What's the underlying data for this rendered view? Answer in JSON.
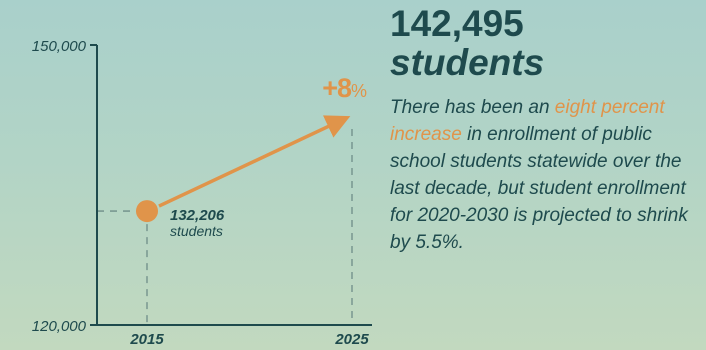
{
  "headline": {
    "number": "142,495",
    "unit": "students"
  },
  "body": {
    "text_before": "There has been an ",
    "accent": "eight percent increase",
    "text_after": " in enrollment of public school students statewide over the last decade, but student enrollment for 2020-2030 is projected to shrink by 5.5%."
  },
  "colors": {
    "accent": "#e0944a",
    "text": "#1e4a4d",
    "axis": "#1e4a4d",
    "guide": "#6e8d88"
  },
  "chart_data": {
    "type": "line",
    "x": [
      2015,
      2025
    ],
    "y": [
      132206,
      142495
    ],
    "ylim": [
      120000,
      150000
    ],
    "xticks": [
      "2015",
      "2025"
    ],
    "yticks": [
      "120,000",
      "150,000"
    ],
    "start_label": {
      "value": "132,206",
      "unit": "students"
    },
    "change_label": {
      "number": "+8",
      "sign": "%"
    },
    "marker": "circle-start-arrow-end",
    "grid": false
  }
}
